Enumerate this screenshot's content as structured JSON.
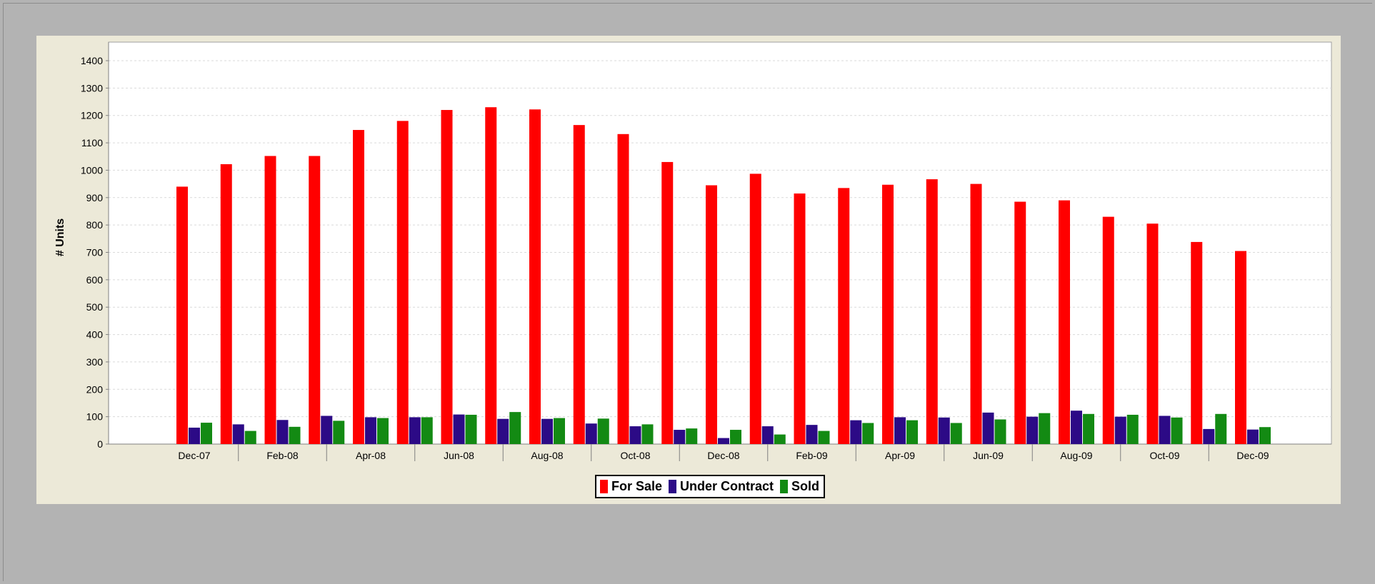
{
  "colors": {
    "for_sale": "#ff0000",
    "under_contract": "#2c0a86",
    "sold": "#138a13",
    "plot_bg": "#ffffff",
    "panel_bg": "#ece9d8",
    "gridline": "#d9d9d9"
  },
  "chart_data": {
    "type": "bar",
    "title": "",
    "xlabel": "",
    "ylabel": "# Units",
    "ylim": [
      0,
      1400
    ],
    "ytick_step": 100,
    "grid": true,
    "legend_position": "bottom-center",
    "categories": [
      "Dec-07",
      "Jan-08",
      "Feb-08",
      "Mar-08",
      "Apr-08",
      "May-08",
      "Jun-08",
      "Jul-08",
      "Aug-08",
      "Sep-08",
      "Oct-08",
      "Nov-08",
      "Dec-08",
      "Jan-09",
      "Feb-09",
      "Mar-09",
      "Apr-09",
      "May-09",
      "Jun-09",
      "Jul-09",
      "Aug-09",
      "Sep-09",
      "Oct-09",
      "Nov-09",
      "Dec-09"
    ],
    "x_tick_labels": [
      "Dec-07",
      "Feb-08",
      "Apr-08",
      "Jun-08",
      "Aug-08",
      "Oct-08",
      "Dec-08",
      "Feb-09",
      "Apr-09",
      "Jun-09",
      "Aug-09",
      "Oct-09",
      "Dec-09"
    ],
    "series": [
      {
        "name": "For Sale",
        "color": "#ff0000",
        "values": [
          940,
          1022,
          1052,
          1052,
          1147,
          1180,
          1220,
          1230,
          1222,
          1165,
          1132,
          1030,
          945,
          987,
          915,
          935,
          947,
          967,
          950,
          885,
          890,
          830,
          805,
          738,
          705
        ]
      },
      {
        "name": "Under Contract",
        "color": "#2c0a86",
        "values": [
          60,
          72,
          88,
          103,
          98,
          98,
          108,
          92,
          92,
          75,
          65,
          52,
          22,
          65,
          70,
          87,
          98,
          97,
          115,
          100,
          122,
          100,
          103,
          55,
          53
        ]
      },
      {
        "name": "Sold",
        "color": "#138a13",
        "values": [
          78,
          48,
          63,
          85,
          95,
          98,
          107,
          117,
          95,
          93,
          72,
          57,
          52,
          35,
          48,
          77,
          87,
          77,
          90,
          113,
          110,
          107,
          97,
          110,
          62
        ]
      }
    ]
  }
}
